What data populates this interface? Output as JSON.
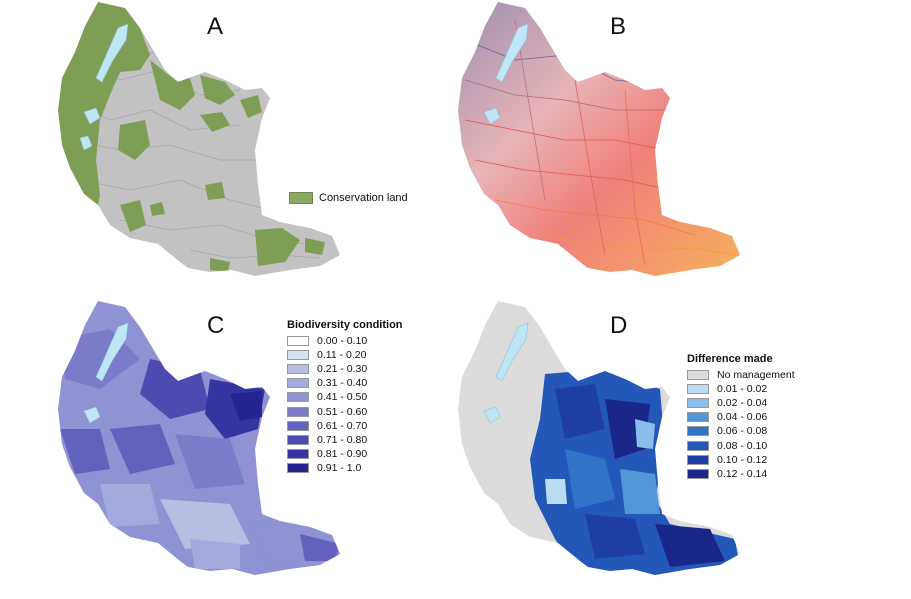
{
  "panels": {
    "a": {
      "letter": "A"
    },
    "b": {
      "letter": "B"
    },
    "c": {
      "letter": "C"
    },
    "d": {
      "letter": "D"
    }
  },
  "legend_a": {
    "items": [
      {
        "label": "Conservation land",
        "color": "#8aa85f"
      }
    ]
  },
  "legend_c": {
    "title": "Biodiversity condition",
    "items": [
      {
        "label": "0.00 - 0.10",
        "color": "#ffffff"
      },
      {
        "label": "0.11 - 0.20",
        "color": "#d4e2f1"
      },
      {
        "label": "0.21 - 0.30",
        "color": "#b6bfe2"
      },
      {
        "label": "0.31 - 0.40",
        "color": "#a3a9dc"
      },
      {
        "label": "0.41 - 0.50",
        "color": "#8f92d3"
      },
      {
        "label": "0.51 - 0.60",
        "color": "#7b7cc9"
      },
      {
        "label": "0.61 - 0.70",
        "color": "#6261bb"
      },
      {
        "label": "0.71 - 0.80",
        "color": "#4d4bb0"
      },
      {
        "label": "0.81 - 0.90",
        "color": "#3634a0"
      },
      {
        "label": "0.91 - 1.0",
        "color": "#262493"
      }
    ]
  },
  "legend_d": {
    "title": "Difference made",
    "items": [
      {
        "label": "No management",
        "color": "#dcdcdc"
      },
      {
        "label": "0.01 - 0.02",
        "color": "#b9dcf2"
      },
      {
        "label": "0.02 - 0.04",
        "color": "#89bfe8"
      },
      {
        "label": "0.04 - 0.06",
        "color": "#4f97d6"
      },
      {
        "label": "0.06 - 0.08",
        "color": "#2f74c7"
      },
      {
        "label": "0.08 - 0.10",
        "color": "#2358b8"
      },
      {
        "label": "0.10 - 0.12",
        "color": "#1d3ea7"
      },
      {
        "label": "0.12 - 0.14",
        "color": "#1a2788"
      }
    ]
  },
  "colors": {
    "hillshade": "#b9b9b9",
    "lake": "#bfe6f4",
    "conservation": "#7f9e55",
    "river_warm": "#e86a5a",
    "river_cool": "#8c7ea8"
  }
}
